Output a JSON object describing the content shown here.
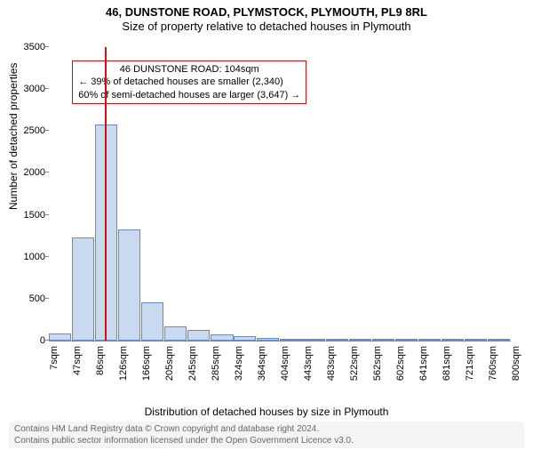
{
  "title_main": "46, DUNSTONE ROAD, PLYMSTOCK, PLYMOUTH, PL9 8RL",
  "title_sub": "Size of property relative to detached houses in Plymouth",
  "y_axis_label": "Number of detached properties",
  "x_axis_label": "Distribution of detached houses by size in Plymouth",
  "footer_line1": "Contains HM Land Registry data © Crown copyright and database right 2024.",
  "footer_line2": "Contains public sector information licensed under the Open Government Licence v3.0.",
  "chart": {
    "type": "histogram",
    "background_color": "#ffffff",
    "bar_fill": "#c8d9f0",
    "bar_border": "#6a8bc0",
    "bar_border_width": 1,
    "marker_color": "#d01010",
    "annot_border_color": "#d01010",
    "axis_color": "#888888",
    "ylim": [
      0,
      3500
    ],
    "y_ticks": [
      0,
      500,
      1000,
      1500,
      2000,
      2500,
      3000,
      3500
    ],
    "x_tick_labels": [
      "7sqm",
      "47sqm",
      "86sqm",
      "126sqm",
      "166sqm",
      "205sqm",
      "245sqm",
      "285sqm",
      "324sqm",
      "364sqm",
      "404sqm",
      "443sqm",
      "483sqm",
      "522sqm",
      "562sqm",
      "602sqm",
      "641sqm",
      "681sqm",
      "721sqm",
      "760sqm",
      "800sqm"
    ],
    "x_tick_positions": [
      7,
      47,
      86,
      126,
      166,
      205,
      245,
      285,
      324,
      364,
      404,
      443,
      483,
      522,
      562,
      602,
      641,
      681,
      721,
      760,
      800
    ],
    "x_range": [
      7,
      800
    ],
    "bar_bin_width": 40,
    "bars": [
      {
        "x_start": 7,
        "count": 90
      },
      {
        "x_start": 47,
        "count": 1230
      },
      {
        "x_start": 86,
        "count": 2580
      },
      {
        "x_start": 126,
        "count": 1330
      },
      {
        "x_start": 166,
        "count": 460
      },
      {
        "x_start": 205,
        "count": 170
      },
      {
        "x_start": 245,
        "count": 130
      },
      {
        "x_start": 285,
        "count": 70
      },
      {
        "x_start": 324,
        "count": 50
      },
      {
        "x_start": 364,
        "count": 30
      },
      {
        "x_start": 404,
        "count": 25
      },
      {
        "x_start": 443,
        "count": 20
      },
      {
        "x_start": 483,
        "count": 5
      },
      {
        "x_start": 522,
        "count": 2
      },
      {
        "x_start": 562,
        "count": 2
      },
      {
        "x_start": 602,
        "count": 2
      },
      {
        "x_start": 641,
        "count": 2
      },
      {
        "x_start": 681,
        "count": 2
      },
      {
        "x_start": 721,
        "count": 1
      },
      {
        "x_start": 760,
        "count": 1
      }
    ],
    "marker_x": 104,
    "annotation": {
      "line1": "46 DUNSTONE ROAD: 104sqm",
      "line2": "← 39% of detached houses are smaller (2,340)",
      "line3": "60% of semi-detached houses are larger (3,647) →",
      "box_left_x": 47,
      "box_top_y": 3350
    }
  }
}
